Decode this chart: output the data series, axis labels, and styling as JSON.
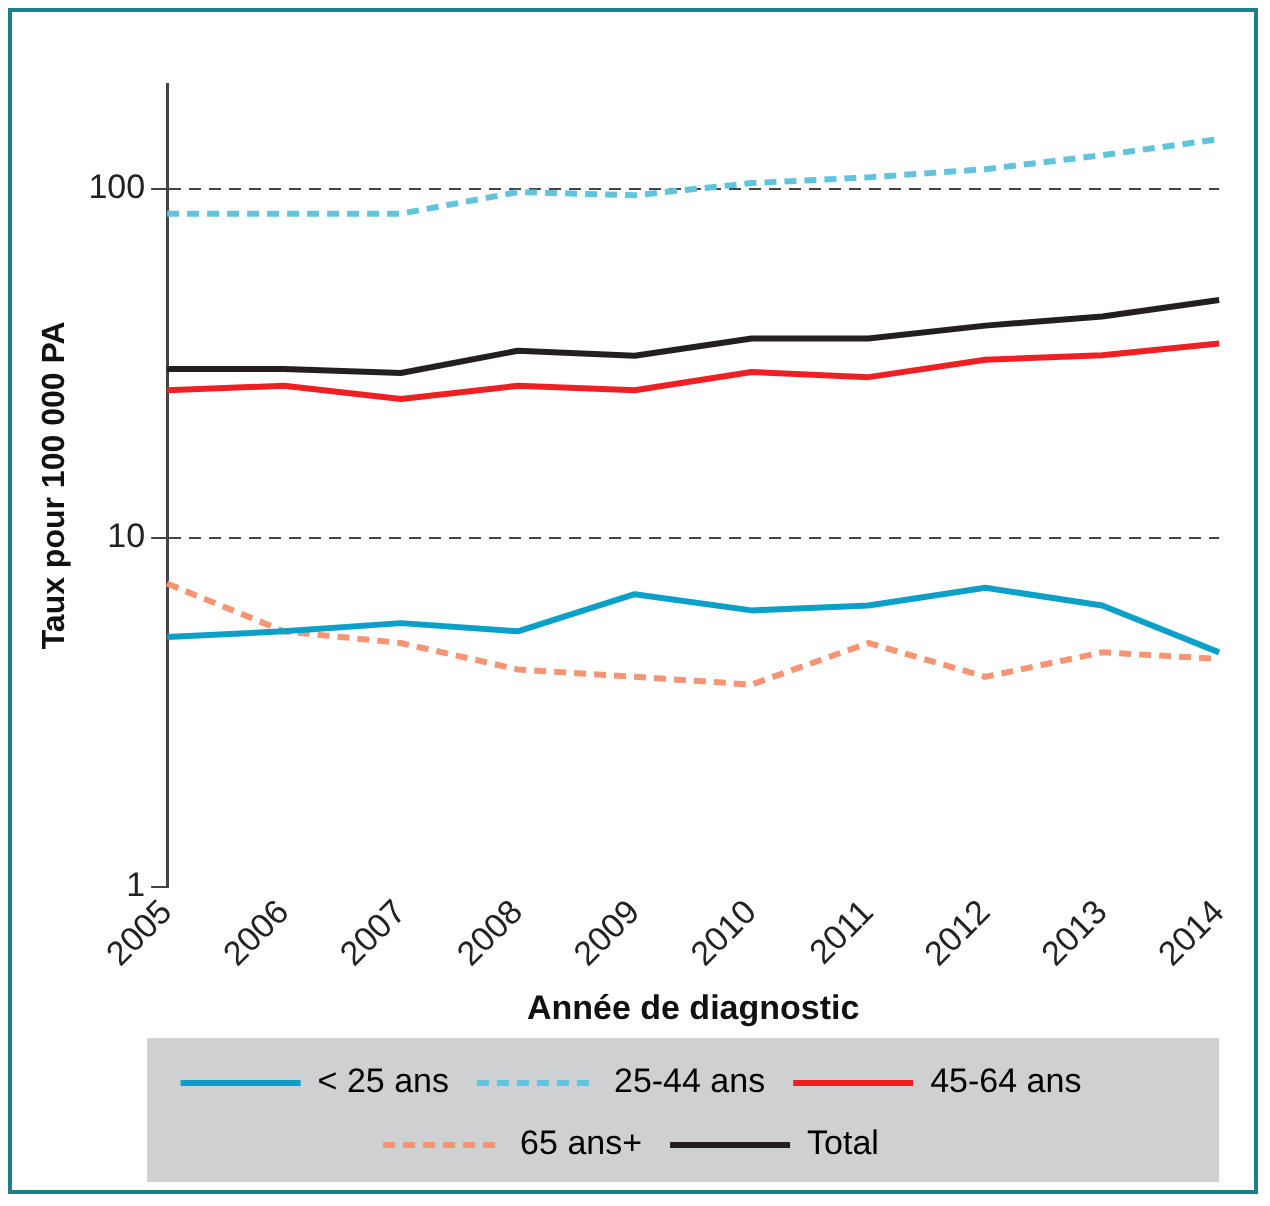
{
  "chart_data": {
    "type": "line",
    "xlabel": "Année de diagnostic",
    "ylabel": "Taux pour 100 000 PA",
    "categories": [
      "2005",
      "2006",
      "2007",
      "2008",
      "2009",
      "2010",
      "2011",
      "2012",
      "2013",
      "2014"
    ],
    "series": [
      {
        "name": "< 25 ans",
        "color": "#0aa0c8",
        "line_style": "solid",
        "values": [
          5.2,
          5.4,
          5.7,
          5.4,
          6.9,
          6.2,
          6.4,
          7.2,
          6.4,
          4.7
        ]
      },
      {
        "name": "25-44 ans",
        "color": "#62c3dd",
        "line_style": "dashed",
        "values": [
          85,
          85,
          85,
          98,
          96,
          104,
          108,
          114,
          125,
          139
        ]
      },
      {
        "name": "45-64 ans",
        "color": "#ee2024",
        "line_style": "solid",
        "values": [
          26.5,
          27.3,
          25.0,
          27.3,
          26.5,
          29.9,
          28.9,
          32.4,
          33.4,
          36.1
        ]
      },
      {
        "name": "65 ans+",
        "color": "#f79473",
        "line_style": "dashed",
        "values": [
          7.4,
          5.4,
          5.0,
          4.2,
          4.0,
          3.8,
          5.0,
          4.0,
          4.7,
          4.5
        ]
      },
      {
        "name": "Total",
        "color": "#231f20",
        "line_style": "solid",
        "values": [
          30.5,
          30.5,
          29.7,
          34.4,
          33.3,
          37.3,
          37.3,
          40.6,
          43.1,
          48.1
        ]
      }
    ],
    "log": "y",
    "ylim": [
      1,
      200
    ],
    "yticks": [
      1,
      10,
      100
    ],
    "grid": "y",
    "legend": "bottom",
    "marker": "none"
  }
}
